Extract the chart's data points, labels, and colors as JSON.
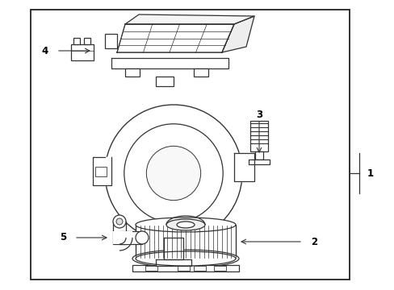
{
  "bg_color": "#ffffff",
  "border_color": "#222222",
  "line_color": "#333333",
  "label_color": "#000000",
  "figsize": [
    4.89,
    3.6
  ],
  "dpi": 100,
  "border": [
    0.09,
    0.04,
    0.78,
    0.93
  ]
}
